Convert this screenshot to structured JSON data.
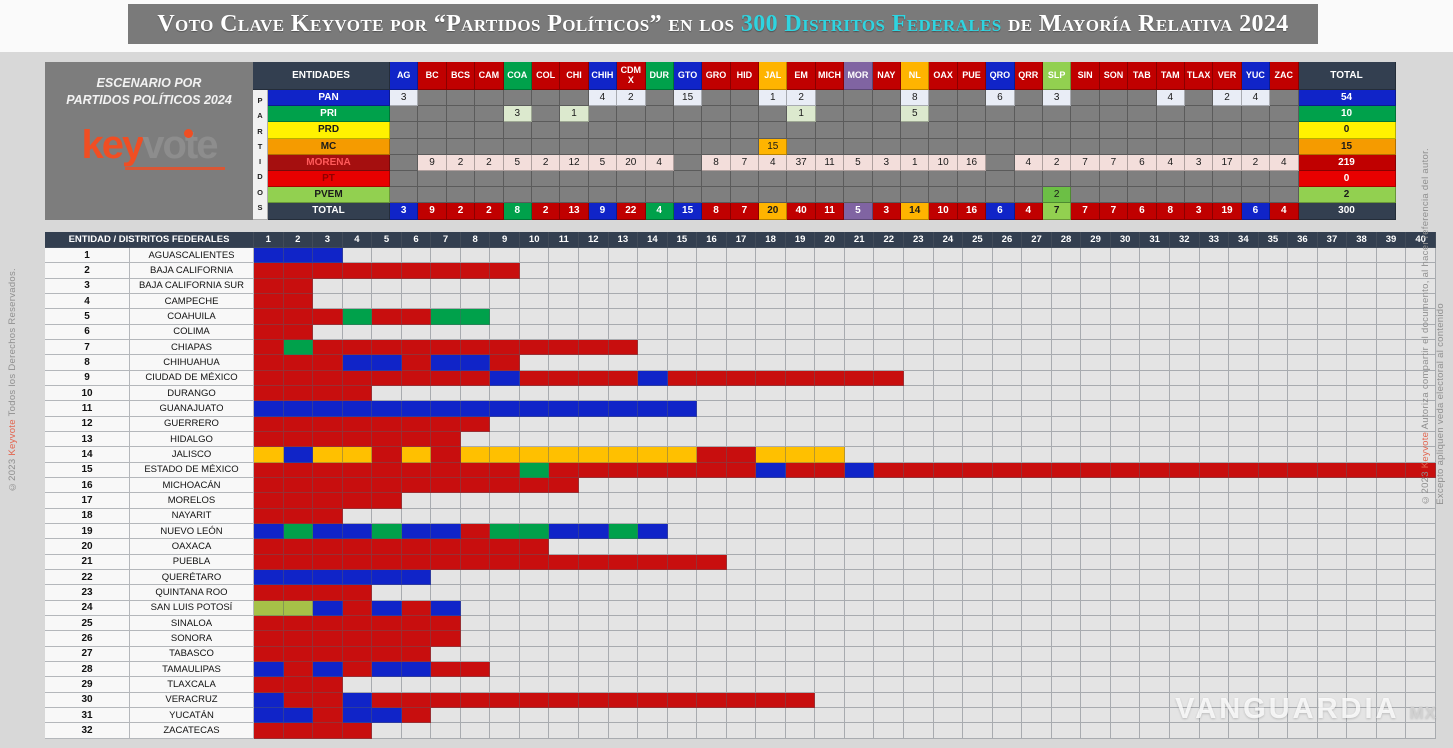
{
  "title": {
    "prefix": "Voto Clave Keyvote por “Partidos Políticos” en los ",
    "highlight": "300 Distritos Federales",
    "suffix": " de Mayoría Relativa 2024"
  },
  "scenario_panel": {
    "line1": "ESCENARIO POR",
    "line2": "PARTIDOS POLÍTICOS 2024",
    "logo_key": "key",
    "logo_vote": "vote"
  },
  "colors": {
    "pan_blue": "#1024C8",
    "pri_green": "#00A14B",
    "prd_yellow": "#FFF200",
    "mc_orange": "#F59B00",
    "mc_gold": "#FFB400",
    "morena_label_red": "#A50F0F",
    "morena_red": "#C00000",
    "grid_red": "#C80E0E",
    "pt_red": "#E80000",
    "pvem_green": "#92D050",
    "pvem_cell_green": "#6CBF45",
    "mor_purple": "#8064A2",
    "header_dark": "#333F50",
    "title_cyan": "#2fd4e0",
    "empty_gray": "#7F7F7F"
  },
  "top_table": {
    "corner_label": "ENTIDADES",
    "vertical_label": "PARTIDOS",
    "total_label": "TOTAL",
    "states": [
      {
        "code": "AG",
        "color": "#1024C8"
      },
      {
        "code": "BC",
        "color": "#C00000"
      },
      {
        "code": "BCS",
        "color": "#C00000"
      },
      {
        "code": "CAM",
        "color": "#C00000"
      },
      {
        "code": "COA",
        "color": "#00A14B"
      },
      {
        "code": "COL",
        "color": "#C00000"
      },
      {
        "code": "CHI",
        "color": "#C00000"
      },
      {
        "code": "CHIH",
        "color": "#1024C8"
      },
      {
        "code": "CDMX",
        "display": "CDM X",
        "color": "#C00000"
      },
      {
        "code": "DUR",
        "color": "#00A14B"
      },
      {
        "code": "GTO",
        "color": "#1024C8"
      },
      {
        "code": "GRO",
        "color": "#C00000"
      },
      {
        "code": "HID",
        "color": "#C00000"
      },
      {
        "code": "JAL",
        "color": "#FFB400"
      },
      {
        "code": "EM",
        "color": "#C00000"
      },
      {
        "code": "MICH",
        "color": "#C00000"
      },
      {
        "code": "MOR",
        "color": "#8064A2"
      },
      {
        "code": "NAY",
        "color": "#C00000"
      },
      {
        "code": "NL",
        "color": "#FFB400"
      },
      {
        "code": "OAX",
        "color": "#C00000"
      },
      {
        "code": "PUE",
        "color": "#C00000"
      },
      {
        "code": "QRO",
        "color": "#1024C8"
      },
      {
        "code": "QRR",
        "color": "#C00000"
      },
      {
        "code": "SLP",
        "color": "#92D050"
      },
      {
        "code": "SIN",
        "color": "#C00000"
      },
      {
        "code": "SON",
        "color": "#C00000"
      },
      {
        "code": "TAB",
        "color": "#C00000"
      },
      {
        "code": "TAM",
        "color": "#C00000"
      },
      {
        "code": "TLAX",
        "color": "#C00000"
      },
      {
        "code": "VER",
        "color": "#C00000"
      },
      {
        "code": "YUC",
        "color": "#1024C8"
      },
      {
        "code": "ZAC",
        "color": "#C00000"
      }
    ],
    "party_rows": [
      {
        "name": "PAN",
        "label_bg": "#1024C8",
        "label_fg": "#FFFFFF",
        "cell_bg": "#E9EDF6",
        "cell_fg": "#1a1a1a",
        "values": {
          "AG": 3,
          "CHIH": 4,
          "CDMX": 2,
          "GTO": 15,
          "JAL": 1,
          "EM": 2,
          "NL": 8,
          "QRO": 6,
          "SLP": 3,
          "TAM": 4,
          "VER": 2,
          "YUC": 4
        },
        "total": 54,
        "total_bg": "#1024C8",
        "total_fg": "#FFFFFF"
      },
      {
        "name": "PRI",
        "label_bg": "#00A14B",
        "label_fg": "#FFFFFF",
        "cell_bg": "#DCE9CE",
        "cell_fg": "#1a1a1a",
        "values": {
          "COA": 3,
          "CHI": 1,
          "EM": 1,
          "NL": 5
        },
        "total": 10,
        "total_bg": "#00A14B",
        "total_fg": "#FFFFFF"
      },
      {
        "name": "PRD",
        "label_bg": "#FFF200",
        "label_fg": "#1a1a1a",
        "cell_bg": "#E9EDF6",
        "cell_fg": "#1a1a1a",
        "values": {},
        "total": 0,
        "total_bg": "#FFF200",
        "total_fg": "#1a1a1a"
      },
      {
        "name": "MC",
        "label_bg": "#F59B00",
        "label_fg": "#1a1a1a",
        "cell_bg": "#FFB400",
        "cell_fg": "#1a1a1a",
        "values": {
          "JAL": 15
        },
        "total": 15,
        "total_bg": "#F59B00",
        "total_fg": "#1a1a1a"
      },
      {
        "name": "MORENA",
        "label_bg": "#A50F0F",
        "label_fg": "#FF5A5A",
        "cell_bg": "#F3DEDB",
        "cell_fg": "#1a1a1a",
        "values": {
          "BC": 9,
          "BCS": 2,
          "CAM": 2,
          "COA": 5,
          "COL": 2,
          "CHI": 12,
          "CHIH": 5,
          "CDMX": 20,
          "DUR": 4,
          "GRO": 8,
          "HID": 7,
          "JAL": 4,
          "EM": 37,
          "MICH": 11,
          "MOR": 5,
          "NAY": 3,
          "NL": 1,
          "OAX": 10,
          "PUE": 16,
          "QRR": 4,
          "SLP": 2,
          "SIN": 7,
          "SON": 7,
          "TAB": 6,
          "TAM": 4,
          "TLAX": 3,
          "VER": 17,
          "YUC": 2,
          "ZAC": 4
        },
        "total": 219,
        "total_bg": "#C00000",
        "total_fg": "#FFFFFF"
      },
      {
        "name": "PT",
        "label_bg": "#E80000",
        "label_fg": "#8F0000",
        "cell_bg": "#E9EDF6",
        "cell_fg": "#1a1a1a",
        "values": {},
        "total": 0,
        "total_bg": "#E80000",
        "total_fg": "#FFFFFF"
      },
      {
        "name": "PVEM",
        "label_bg": "#92D050",
        "label_fg": "#1a1a1a",
        "cell_bg": "#6CBF45",
        "cell_fg": "#1a1a1a",
        "values": {
          "SLP": 2
        },
        "total": 2,
        "total_bg": "#92D050",
        "total_fg": "#1a1a1a"
      }
    ],
    "total_row": {
      "label": "TOTAL",
      "values": [
        3,
        9,
        2,
        2,
        8,
        2,
        13,
        9,
        22,
        4,
        15,
        8,
        7,
        20,
        40,
        11,
        5,
        3,
        14,
        10,
        16,
        6,
        4,
        7,
        7,
        7,
        6,
        8,
        3,
        19,
        6,
        4
      ],
      "grand_total": 300
    }
  },
  "district_grid": {
    "header_label": "ENTIDAD / DISTRITOS FEDERALES",
    "num_columns": 40,
    "cell_colors": {
      "B": "#1024C8",
      "G": "#00A14B",
      "R": "#C80E0E",
      "Y": "#FFC000",
      "V": "#A6C148"
    },
    "legend": {
      "B": "PAN",
      "G": "PRI",
      "R": "MORENA",
      "Y": "MC",
      "V": "PVEM"
    },
    "rows": [
      {
        "num": 1,
        "name": "AGUASCALIENTES",
        "cells": "BBB"
      },
      {
        "num": 2,
        "name": "BAJA CALIFORNIA",
        "cells": "RRRRRRRRR"
      },
      {
        "num": 3,
        "name": "BAJA CALIFORNIA SUR",
        "cells": "RR"
      },
      {
        "num": 4,
        "name": "CAMPECHE",
        "cells": "RR"
      },
      {
        "num": 5,
        "name": "COAHUILA",
        "cells": "RRRGRRGG"
      },
      {
        "num": 6,
        "name": "COLIMA",
        "cells": "RR"
      },
      {
        "num": 7,
        "name": "CHIAPAS",
        "cells": "RGRRRRRRRRRRR"
      },
      {
        "num": 8,
        "name": "CHIHUAHUA",
        "cells": "RRRBBRBBR"
      },
      {
        "num": 9,
        "name": "CIUDAD DE MÉXICO",
        "cells": "RRRRRRRRBRRRRBRRRRRRRR"
      },
      {
        "num": 10,
        "name": "DURANGO",
        "cells": "RRRR"
      },
      {
        "num": 11,
        "name": "GUANAJUATO",
        "cells": "BBBBBBBBBBBBBBB"
      },
      {
        "num": 12,
        "name": "GUERRERO",
        "cells": "RRRRRRRR"
      },
      {
        "num": 13,
        "name": "HIDALGO",
        "cells": "RRRRRRR"
      },
      {
        "num": 14,
        "name": "JALISCO",
        "cells": "YBYYRYRYYYYYYYYRRYYY"
      },
      {
        "num": 15,
        "name": "ESTADO DE MÉXICO",
        "cells": "RRRRRRRRRGRRRRRRRBRRBRRRRRRRRRRRRRRRRRRR"
      },
      {
        "num": 16,
        "name": "MICHOACÁN",
        "cells": "RRRRRRRRRRR"
      },
      {
        "num": 17,
        "name": "MORELOS",
        "cells": "RRRRR"
      },
      {
        "num": 18,
        "name": "NAYARIT",
        "cells": "RRR"
      },
      {
        "num": 19,
        "name": "NUEVO LEÓN",
        "cells": "BGBBGBBRGGBBGB"
      },
      {
        "num": 20,
        "name": "OAXACA",
        "cells": "RRRRRRRRRR"
      },
      {
        "num": 21,
        "name": "PUEBLA",
        "cells": "RRRRRRRRRRRRRRRR"
      },
      {
        "num": 22,
        "name": "QUERÉTARO",
        "cells": "BBBBBB"
      },
      {
        "num": 23,
        "name": "QUINTANA ROO",
        "cells": "RRRR"
      },
      {
        "num": 24,
        "name": "SAN LUIS POTOSÍ",
        "cells": "VVBRBRB"
      },
      {
        "num": 25,
        "name": "SINALOA",
        "cells": "RRRRRRR"
      },
      {
        "num": 26,
        "name": "SONORA",
        "cells": "RRRRRRR"
      },
      {
        "num": 27,
        "name": "TABASCO",
        "cells": "RRRRRR"
      },
      {
        "num": 28,
        "name": "TAMAULIPAS",
        "cells": "BRBRBBRR"
      },
      {
        "num": 29,
        "name": "TLAXCALA",
        "cells": "RRR"
      },
      {
        "num": 30,
        "name": "VERACRUZ",
        "cells": "BRRBRRRRRRRRRRRRRRR"
      },
      {
        "num": 31,
        "name": "YUCATÁN",
        "cells": "BBRBBR"
      },
      {
        "num": 32,
        "name": "ZACATECAS",
        "cells": "RRRR"
      }
    ]
  },
  "watermarks": {
    "left_prefix": "©2023 ",
    "left_brand": "Keyvote",
    "left_suffix": " Todos los Derechos Reservados.",
    "right_prefix": "©2023 ",
    "right_brand": "Keyvote",
    "right_text": " Autoriza compartir el documento, al hacer referencia del autor.",
    "right_line2": "Excepto apliquen veda electoral al contenido",
    "brand": "VANGUARDIA",
    "brand_suffix": "MX"
  },
  "chart_data": {
    "type": "table",
    "title": "Voto Clave Keyvote por “Partidos Políticos” en los 300 Distritos Federales de Mayoría Relativa 2024",
    "categories": [
      "AG",
      "BC",
      "BCS",
      "CAM",
      "COA",
      "COL",
      "CHI",
      "CHIH",
      "CDMX",
      "DUR",
      "GTO",
      "GRO",
      "HID",
      "JAL",
      "EM",
      "MICH",
      "MOR",
      "NAY",
      "NL",
      "OAX",
      "PUE",
      "QRO",
      "QRR",
      "SLP",
      "SIN",
      "SON",
      "TAB",
      "TAM",
      "TLAX",
      "VER",
      "YUC",
      "ZAC"
    ],
    "series": [
      {
        "name": "PAN",
        "values": [
          3,
          0,
          0,
          0,
          0,
          0,
          0,
          4,
          2,
          0,
          15,
          0,
          0,
          1,
          2,
          0,
          0,
          0,
          8,
          0,
          0,
          6,
          0,
          3,
          0,
          0,
          0,
          4,
          0,
          2,
          4,
          0
        ],
        "total": 54
      },
      {
        "name": "PRI",
        "values": [
          0,
          0,
          0,
          0,
          3,
          0,
          1,
          0,
          0,
          0,
          0,
          0,
          0,
          0,
          1,
          0,
          0,
          0,
          5,
          0,
          0,
          0,
          0,
          0,
          0,
          0,
          0,
          0,
          0,
          0,
          0,
          0
        ],
        "total": 10
      },
      {
        "name": "PRD",
        "values": [
          0,
          0,
          0,
          0,
          0,
          0,
          0,
          0,
          0,
          0,
          0,
          0,
          0,
          0,
          0,
          0,
          0,
          0,
          0,
          0,
          0,
          0,
          0,
          0,
          0,
          0,
          0,
          0,
          0,
          0,
          0,
          0
        ],
        "total": 0
      },
      {
        "name": "MC",
        "values": [
          0,
          0,
          0,
          0,
          0,
          0,
          0,
          0,
          0,
          0,
          0,
          0,
          0,
          15,
          0,
          0,
          0,
          0,
          0,
          0,
          0,
          0,
          0,
          0,
          0,
          0,
          0,
          0,
          0,
          0,
          0,
          0
        ],
        "total": 15
      },
      {
        "name": "MORENA",
        "values": [
          0,
          9,
          2,
          2,
          5,
          2,
          12,
          5,
          20,
          4,
          0,
          8,
          7,
          4,
          37,
          11,
          5,
          3,
          1,
          10,
          16,
          0,
          4,
          2,
          7,
          7,
          6,
          4,
          3,
          17,
          2,
          4
        ],
        "total": 219
      },
      {
        "name": "PT",
        "values": [
          0,
          0,
          0,
          0,
          0,
          0,
          0,
          0,
          0,
          0,
          0,
          0,
          0,
          0,
          0,
          0,
          0,
          0,
          0,
          0,
          0,
          0,
          0,
          0,
          0,
          0,
          0,
          0,
          0,
          0,
          0,
          0
        ],
        "total": 0
      },
      {
        "name": "PVEM",
        "values": [
          0,
          0,
          0,
          0,
          0,
          0,
          0,
          0,
          0,
          0,
          0,
          0,
          0,
          0,
          0,
          0,
          0,
          0,
          0,
          0,
          0,
          0,
          0,
          2,
          0,
          0,
          0,
          0,
          0,
          0,
          0,
          0
        ],
        "total": 2
      }
    ],
    "totals_by_state": [
      3,
      9,
      2,
      2,
      8,
      2,
      13,
      9,
      22,
      4,
      15,
      8,
      7,
      20,
      40,
      11,
      5,
      3,
      14,
      10,
      16,
      6,
      4,
      7,
      7,
      7,
      6,
      8,
      3,
      19,
      6,
      4
    ],
    "grand_total": 300
  }
}
